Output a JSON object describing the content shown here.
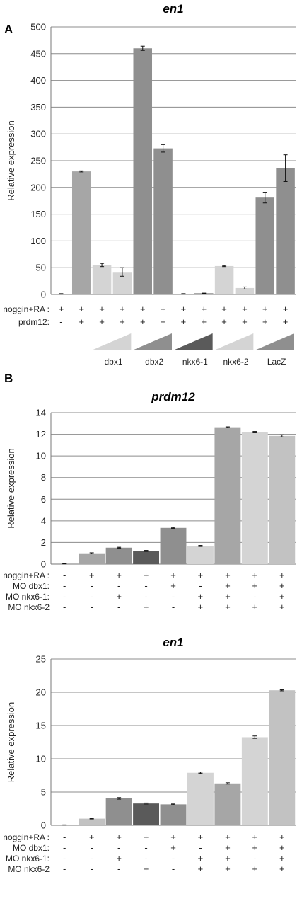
{
  "panels": {
    "a_label": "A",
    "b_label": "B"
  },
  "chart_data": [
    {
      "type": "bar",
      "title": "en1",
      "ylabel": "Relative expression",
      "ylim": [
        0,
        500
      ],
      "yticks": [
        0,
        50,
        100,
        150,
        200,
        250,
        300,
        350,
        400,
        450,
        500
      ],
      "grid": true,
      "values": [
        1,
        230,
        55,
        42,
        460,
        273,
        1,
        2,
        53,
        12,
        181,
        236
      ],
      "errors": [
        0.5,
        1,
        3,
        8,
        4,
        7,
        0.5,
        0.5,
        1,
        2,
        10,
        25
      ],
      "colors": [
        "#a6a6a6",
        "#a6a6a6",
        "#d4d4d4",
        "#d4d4d4",
        "#8f8f8f",
        "#8f8f8f",
        "#5a5a5a",
        "#5a5a5a",
        "#d4d4d4",
        "#d4d4d4",
        "#8f8f8f",
        "#8f8f8f"
      ],
      "rows": [
        {
          "label": "noggin+RA :",
          "values": [
            "+",
            "+",
            "+",
            "+",
            "+",
            "+",
            "+",
            "+",
            "+",
            "+",
            "+",
            "+"
          ]
        },
        {
          "label": "prdm12:",
          "values": [
            "-",
            "+",
            "+",
            "+",
            "+",
            "+",
            "+",
            "+",
            "+",
            "+",
            "+",
            "+"
          ]
        }
      ],
      "gradient_groups": [
        {
          "label": "dbx1",
          "color": "#d4d4d4"
        },
        {
          "label": "dbx2",
          "color": "#8f8f8f"
        },
        {
          "label": "nkx6-1",
          "color": "#5a5a5a"
        },
        {
          "label": "nkx6-2",
          "color": "#d4d4d4"
        },
        {
          "label": "LacZ",
          "color": "#8f8f8f"
        }
      ]
    },
    {
      "type": "bar",
      "title": "prdm12",
      "ylabel": "Relative expression",
      "ylim": [
        0,
        14
      ],
      "yticks": [
        0,
        2,
        4,
        6,
        8,
        10,
        12,
        14
      ],
      "grid": true,
      "values": [
        0.03,
        1.0,
        1.52,
        1.22,
        3.35,
        1.68,
        12.65,
        12.2,
        11.85
      ],
      "errors": [
        0.01,
        0.05,
        0.04,
        0.05,
        0.04,
        0.05,
        0.04,
        0.06,
        0.1
      ],
      "colors": [
        "#a6a6a6",
        "#a6a6a6",
        "#8f8f8f",
        "#5a5a5a",
        "#8f8f8f",
        "#d4d4d4",
        "#a6a6a6",
        "#d4d4d4",
        "#c2c2c2"
      ],
      "rows": [
        {
          "label": "noggin+RA :",
          "values": [
            "-",
            "+",
            "+",
            "+",
            "+",
            "+",
            "+",
            "+",
            "+"
          ]
        },
        {
          "label": "MO dbx1:",
          "values": [
            "-",
            "-",
            "-",
            "-",
            "+",
            "-",
            "+",
            "+",
            "+"
          ]
        },
        {
          "label": "MO nkx6-1:",
          "values": [
            "-",
            "-",
            "+",
            "-",
            "-",
            "+",
            "+",
            "-",
            "+"
          ]
        },
        {
          "label": "MO nkx6-2",
          "values": [
            "-",
            "-",
            "-",
            "+",
            "-",
            "+",
            "+",
            "+",
            "+"
          ]
        }
      ]
    },
    {
      "type": "bar",
      "title": "en1",
      "ylabel": "Relative expression",
      "ylim": [
        0,
        25
      ],
      "yticks": [
        0,
        5,
        10,
        15,
        20,
        25
      ],
      "grid": true,
      "values": [
        0.05,
        1.0,
        4.05,
        3.28,
        3.15,
        7.9,
        6.3,
        13.25,
        20.3
      ],
      "errors": [
        0.02,
        0.05,
        0.12,
        0.08,
        0.06,
        0.1,
        0.1,
        0.18,
        0.08
      ],
      "colors": [
        "#a6a6a6",
        "#c2c2c2",
        "#8f8f8f",
        "#5a5a5a",
        "#8f8f8f",
        "#d4d4d4",
        "#a6a6a6",
        "#d4d4d4",
        "#c2c2c2"
      ],
      "rows": [
        {
          "label": "noggin+RA :",
          "values": [
            "-",
            "+",
            "+",
            "+",
            "+",
            "+",
            "+",
            "+",
            "+"
          ]
        },
        {
          "label": "MO dbx1:",
          "values": [
            "-",
            "-",
            "-",
            "-",
            "+",
            "-",
            "+",
            "+",
            "+"
          ]
        },
        {
          "label": "MO nkx6-1:",
          "values": [
            "-",
            "-",
            "+",
            "-",
            "-",
            "+",
            "+",
            "-",
            "+"
          ]
        },
        {
          "label": "MO nkx6-2",
          "values": [
            "-",
            "-",
            "-",
            "+",
            "-",
            "+",
            "+",
            "+",
            "+"
          ]
        }
      ]
    }
  ]
}
